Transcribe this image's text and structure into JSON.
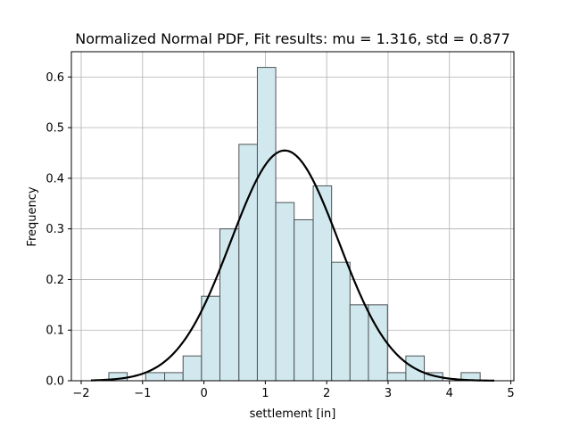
{
  "chart_data": {
    "type": "bar",
    "title": "Normalized Normal PDF, Fit results: mu = 1.316,  std = 0.877",
    "xlabel": "settlement [in]",
    "ylabel": "Frequency",
    "xlim": [
      -2.16,
      5.05
    ],
    "ylim": [
      0,
      0.65
    ],
    "xticks": [
      -2,
      -1,
      0,
      1,
      2,
      3,
      4,
      5
    ],
    "yticks": [
      0.0,
      0.1,
      0.2,
      0.3,
      0.4,
      0.5,
      0.6
    ],
    "ytick_labels": [
      "0.0",
      "0.1",
      "0.2",
      "0.3",
      "0.4",
      "0.5",
      "0.6"
    ],
    "grid": true,
    "bins": [
      {
        "x0": -1.55,
        "x1": -1.25,
        "value": 0.016
      },
      {
        "x0": -1.25,
        "x1": -0.95,
        "value": 0.0
      },
      {
        "x0": -0.95,
        "x1": -0.64,
        "value": 0.016
      },
      {
        "x0": -0.64,
        "x1": -0.34,
        "value": 0.016
      },
      {
        "x0": -0.34,
        "x1": -0.04,
        "value": 0.049
      },
      {
        "x0": -0.04,
        "x1": 0.26,
        "value": 0.167
      },
      {
        "x0": 0.26,
        "x1": 0.57,
        "value": 0.3
      },
      {
        "x0": 0.57,
        "x1": 0.87,
        "value": 0.467
      },
      {
        "x0": 0.87,
        "x1": 1.17,
        "value": 0.619
      },
      {
        "x0": 1.17,
        "x1": 1.47,
        "value": 0.352
      },
      {
        "x0": 1.47,
        "x1": 1.78,
        "value": 0.318
      },
      {
        "x0": 1.78,
        "x1": 2.08,
        "value": 0.385
      },
      {
        "x0": 2.08,
        "x1": 2.38,
        "value": 0.234
      },
      {
        "x0": 2.38,
        "x1": 2.68,
        "value": 0.15
      },
      {
        "x0": 2.68,
        "x1": 2.99,
        "value": 0.15
      },
      {
        "x0": 2.99,
        "x1": 3.29,
        "value": 0.016
      },
      {
        "x0": 3.29,
        "x1": 3.59,
        "value": 0.049
      },
      {
        "x0": 3.59,
        "x1": 3.89,
        "value": 0.016
      },
      {
        "x0": 3.89,
        "x1": 4.19,
        "value": 0.0
      },
      {
        "x0": 4.19,
        "x1": 4.5,
        "value": 0.016
      }
    ],
    "fit": {
      "mu": 1.316,
      "std": 0.877,
      "x_range": [
        -1.84,
        4.73
      ]
    },
    "colors": {
      "bar_fill": "#d1e9ee",
      "bar_edge": "#4d5356",
      "curve": "#000000",
      "grid": "#b0b0b0"
    }
  }
}
